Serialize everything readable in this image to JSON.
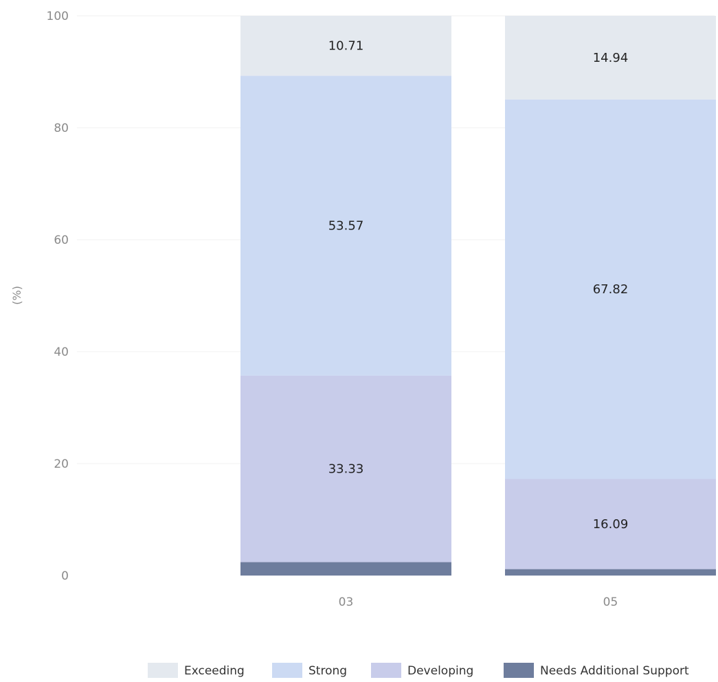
{
  "chart_data": {
    "type": "bar",
    "stacked": true,
    "categories": [
      "03",
      "05"
    ],
    "ylabel": "(%)",
    "ylim": [
      0,
      100
    ],
    "yticks": [
      0,
      20,
      40,
      60,
      80,
      100
    ],
    "grid": true,
    "legend_position": "bottom",
    "series": [
      {
        "name": "Needs Additional Support",
        "values": [
          2.39,
          1.15
        ],
        "labels": [
          "",
          ""
        ],
        "color": "#6e7d9d"
      },
      {
        "name": "Developing",
        "values": [
          33.33,
          16.09
        ],
        "labels": [
          "33.33",
          "16.09"
        ],
        "color": "#c8ccea"
      },
      {
        "name": "Strong",
        "values": [
          53.57,
          67.82
        ],
        "labels": [
          "53.57",
          "67.82"
        ],
        "color": "#ccdaf3"
      },
      {
        "name": "Exceeding",
        "values": [
          10.71,
          14.94
        ],
        "labels": [
          "10.71",
          "14.94"
        ],
        "color": "#e4e9ef"
      }
    ],
    "legend_order": [
      "Exceeding",
      "Strong",
      "Developing",
      "Needs Additional Support"
    ]
  }
}
